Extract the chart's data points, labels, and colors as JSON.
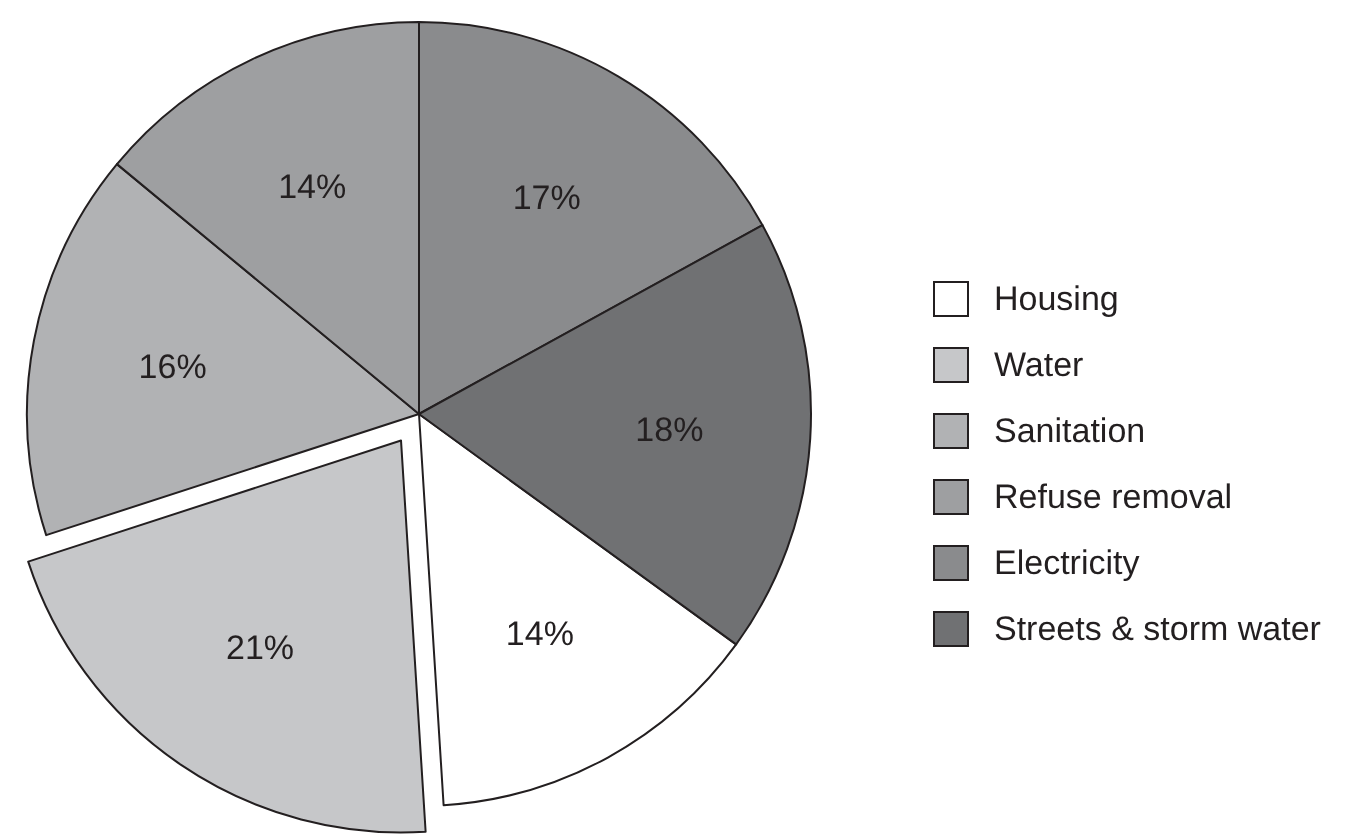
{
  "chart_data": {
    "type": "pie",
    "categories": [
      "Housing",
      "Water",
      "Sanitation",
      "Refuse removal",
      "Electricity",
      "Streets & storm water"
    ],
    "values": [
      14,
      21,
      16,
      14,
      17,
      18
    ],
    "value_labels": [
      "14%",
      "21%",
      "16%",
      "14%",
      "17%",
      "18%"
    ],
    "colors": [
      "#ffffff",
      "#c6c7c9",
      "#b1b2b4",
      "#9e9fa1",
      "#8a8b8d",
      "#707173"
    ],
    "legend": "right"
  }
}
